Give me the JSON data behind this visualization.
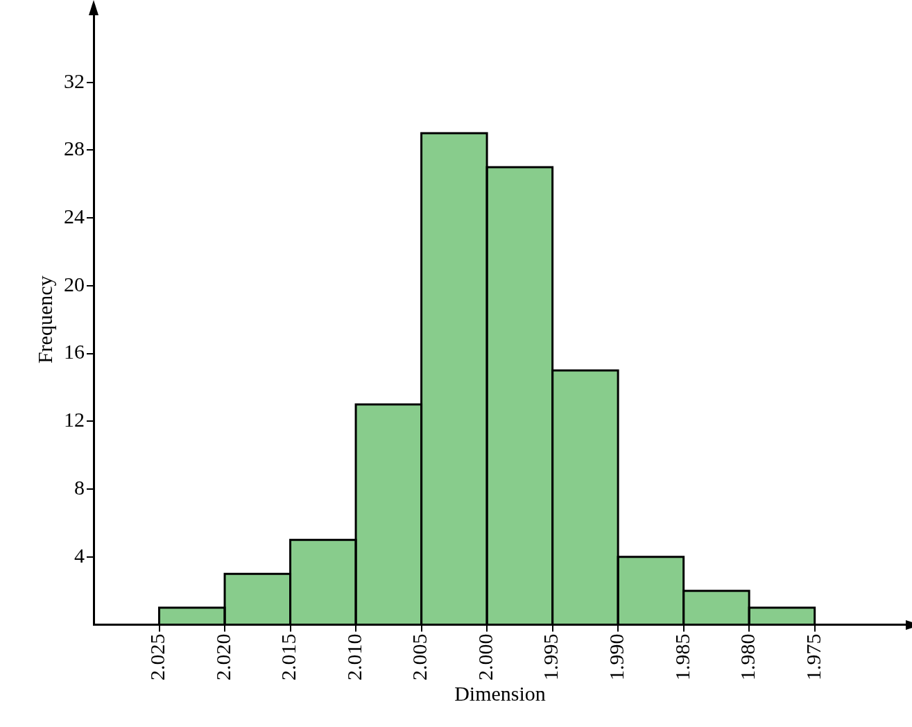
{
  "chart_data": {
    "type": "histogram",
    "xlabel": "Dimension",
    "ylabel": "Frequency",
    "bins": [
      2.025,
      2.02,
      2.015,
      2.01,
      2.005,
      2.0,
      1.995,
      1.99,
      1.985,
      1.98,
      1.975
    ],
    "values": [
      1,
      3,
      5,
      13,
      29,
      27,
      15,
      4,
      2,
      1
    ],
    "color": "#88cc8c",
    "xlim": [
      2.03,
      1.968
    ],
    "ylim": [
      0,
      36
    ],
    "xticks": [
      {
        "value": 2.025,
        "label": "2.025"
      },
      {
        "value": 2.02,
        "label": "2.020"
      },
      {
        "value": 2.015,
        "label": "2.015"
      },
      {
        "value": 2.01,
        "label": "2.010"
      },
      {
        "value": 2.005,
        "label": "2.005"
      },
      {
        "value": 2.0,
        "label": "2.000"
      },
      {
        "value": 1.995,
        "label": "1.995"
      },
      {
        "value": 1.99,
        "label": "1.990"
      },
      {
        "value": 1.985,
        "label": "1.985"
      },
      {
        "value": 1.98,
        "label": "1.980"
      },
      {
        "value": 1.975,
        "label": "1.975"
      }
    ],
    "yticks": [
      4,
      8,
      12,
      16,
      20,
      24,
      28,
      32
    ],
    "legend": false
  }
}
